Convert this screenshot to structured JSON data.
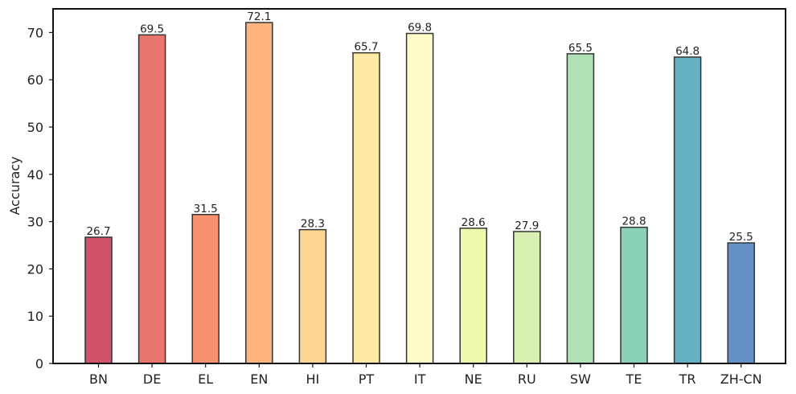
{
  "chart_data": {
    "type": "bar",
    "title": "",
    "xlabel": "",
    "ylabel": "Accuracy",
    "ylim": [
      0,
      75
    ],
    "yticks": [
      0,
      10,
      20,
      30,
      40,
      50,
      60,
      70
    ],
    "grid": false,
    "categories": [
      "BN",
      "DE",
      "EL",
      "EN",
      "HI",
      "PT",
      "IT",
      "NE",
      "RU",
      "SW",
      "TE",
      "TR",
      "ZH-CN"
    ],
    "values": [
      26.7,
      69.5,
      31.5,
      72.1,
      28.3,
      65.7,
      69.8,
      28.6,
      27.9,
      65.5,
      28.8,
      64.8,
      25.5
    ],
    "data_labels": [
      "26.7",
      "69.5",
      "31.5",
      "72.1",
      "28.3",
      "65.7",
      "69.8",
      "28.6",
      "27.9",
      "65.5",
      "28.8",
      "64.8",
      "25.5"
    ],
    "colors": [
      "#d0536b",
      "#e8766f",
      "#f69270",
      "#fdb57d",
      "#fed694",
      "#feeaa5",
      "#fefcc8",
      "#f0f8ae",
      "#d7efb0",
      "#b2e0b6",
      "#89d0b4",
      "#66b1c1",
      "#6391c5"
    ],
    "bar_edge_color": "#333333"
  }
}
